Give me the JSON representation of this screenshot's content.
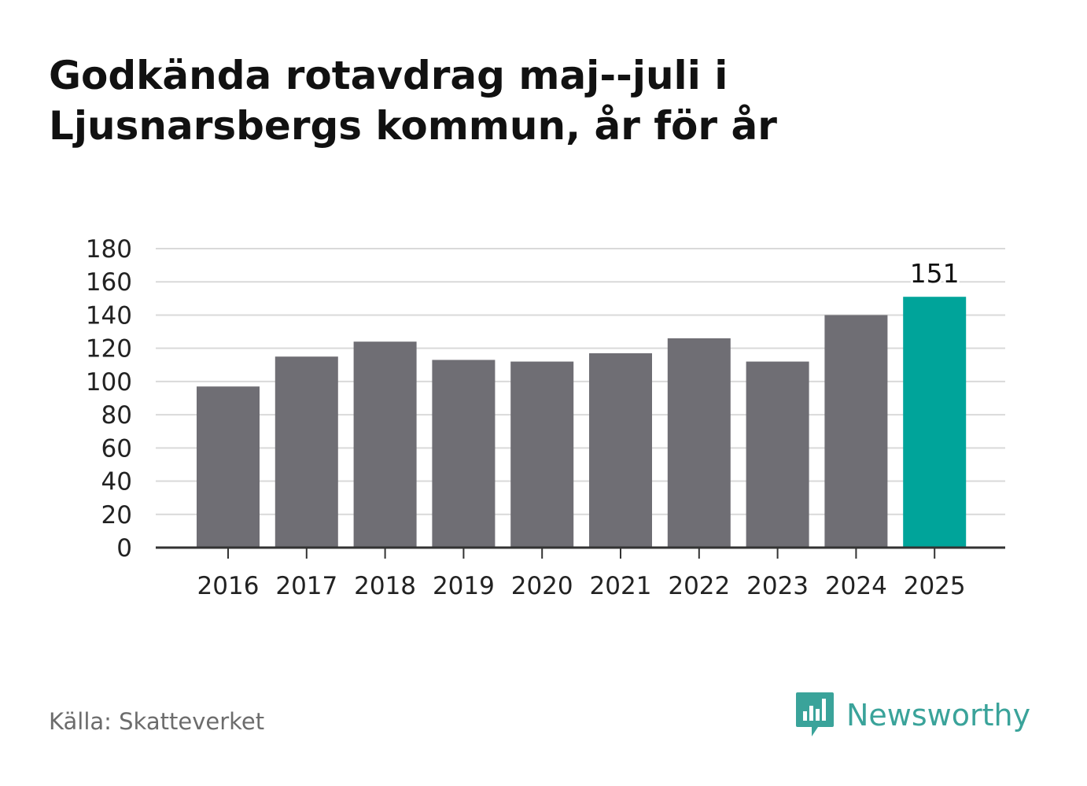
{
  "title": {
    "line1": "Godkända rotavdrag maj--juli i",
    "line2": "Ljusnarsbergs kommun, år för år"
  },
  "source": "Källa: Skatteverket",
  "brand": {
    "name": "Newsworthy",
    "icon": "newsworthy-logo-icon"
  },
  "colors": {
    "bar": "#6f6e74",
    "highlight": "#00a49a",
    "grid": "#d9d9d9",
    "axis": "#333333"
  },
  "chart_data": {
    "type": "bar",
    "categories": [
      "2016",
      "2017",
      "2018",
      "2019",
      "2020",
      "2021",
      "2022",
      "2023",
      "2024",
      "2025"
    ],
    "values": [
      97,
      115,
      124,
      113,
      112,
      117,
      126,
      112,
      140,
      151
    ],
    "highlight_index": 9,
    "data_labels": [
      {
        "index": 9,
        "text": "151"
      }
    ],
    "yticks": [
      0,
      20,
      40,
      60,
      80,
      100,
      120,
      140,
      160,
      180
    ],
    "ylim": [
      0,
      180
    ],
    "grid": true,
    "xlabel": "",
    "ylabel": ""
  }
}
